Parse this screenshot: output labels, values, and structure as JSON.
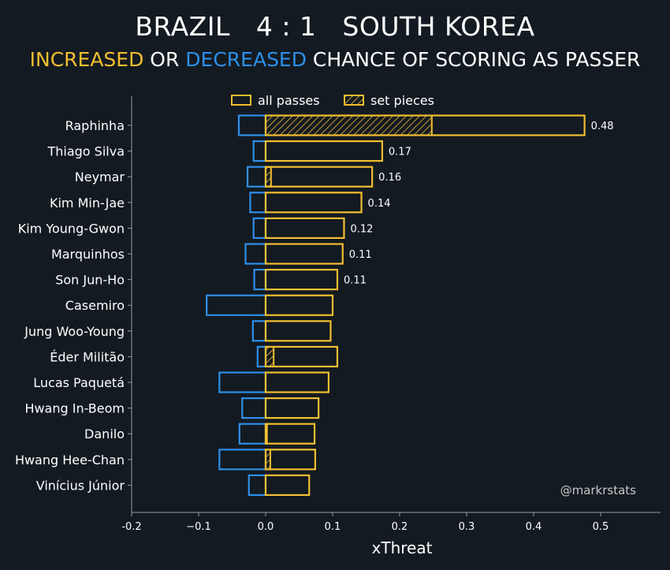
{
  "header": {
    "title": "BRAZIL   4 : 1   SOUTH KOREA",
    "subtitle_increased": "INCREASED",
    "subtitle_or": " OR ",
    "subtitle_decreased": "DECREASED",
    "subtitle_rest": " CHANCE OF SCORING AS PASSER"
  },
  "colors": {
    "background": "#131a21",
    "increased": "#f2be30",
    "decreased": "#2e8fe8",
    "text": "#ffffff",
    "axis": "#9a9fa5",
    "watermark": "#c8c8c8"
  },
  "watermark": "@markrstats",
  "chart_data": {
    "type": "bar",
    "orientation": "horizontal",
    "categories": [
      "Raphinha",
      "Thiago Silva",
      "Neymar",
      "Kim Min-Jae",
      "Kim Young-Gwon",
      "Marquinhos",
      "Son Jun-Ho",
      "Casemiro",
      "Jung Woo-Young",
      "Éder Militão",
      "Lucas Paquetá",
      "Hwang In-Beom",
      "Danilo",
      "Hwang Hee-Chan",
      "Vinícius Júnior"
    ],
    "series": [
      {
        "name": "all passes",
        "values": [
          0.476,
          0.174,
          0.159,
          0.143,
          0.117,
          0.115,
          0.107,
          0.1,
          0.097,
          0.107,
          0.094,
          0.079,
          0.073,
          0.074,
          0.065
        ]
      },
      {
        "name": "set pieces",
        "values": [
          0.248,
          0,
          0.008,
          0,
          0,
          0,
          0,
          0,
          0,
          0.012,
          0,
          0,
          0.002,
          0.007,
          0
        ]
      },
      {
        "values": [
          -0.04,
          -0.018,
          -0.027,
          -0.023,
          -0.018,
          -0.03,
          -0.017,
          -0.088,
          -0.019,
          -0.012,
          -0.069,
          -0.035,
          -0.039,
          -0.069,
          -0.025
        ]
      }
    ],
    "data_labels": [
      "0.48",
      "0.17",
      "0.16",
      "0.14",
      "0.12",
      "0.11",
      "0.11",
      "",
      "",
      "",
      "",
      "",
      "",
      "",
      ""
    ],
    "xlabel": "xThreat",
    "ylabel": "",
    "xlim": [
      -0.2,
      0.5
    ],
    "xticks": [
      "-0.2",
      "−0.1",
      "0.0",
      "0.1",
      "0.2",
      "0.3",
      "0.4",
      "0.5"
    ],
    "legend": [
      "all passes",
      "set pieces"
    ],
    "legend_position": "top"
  }
}
